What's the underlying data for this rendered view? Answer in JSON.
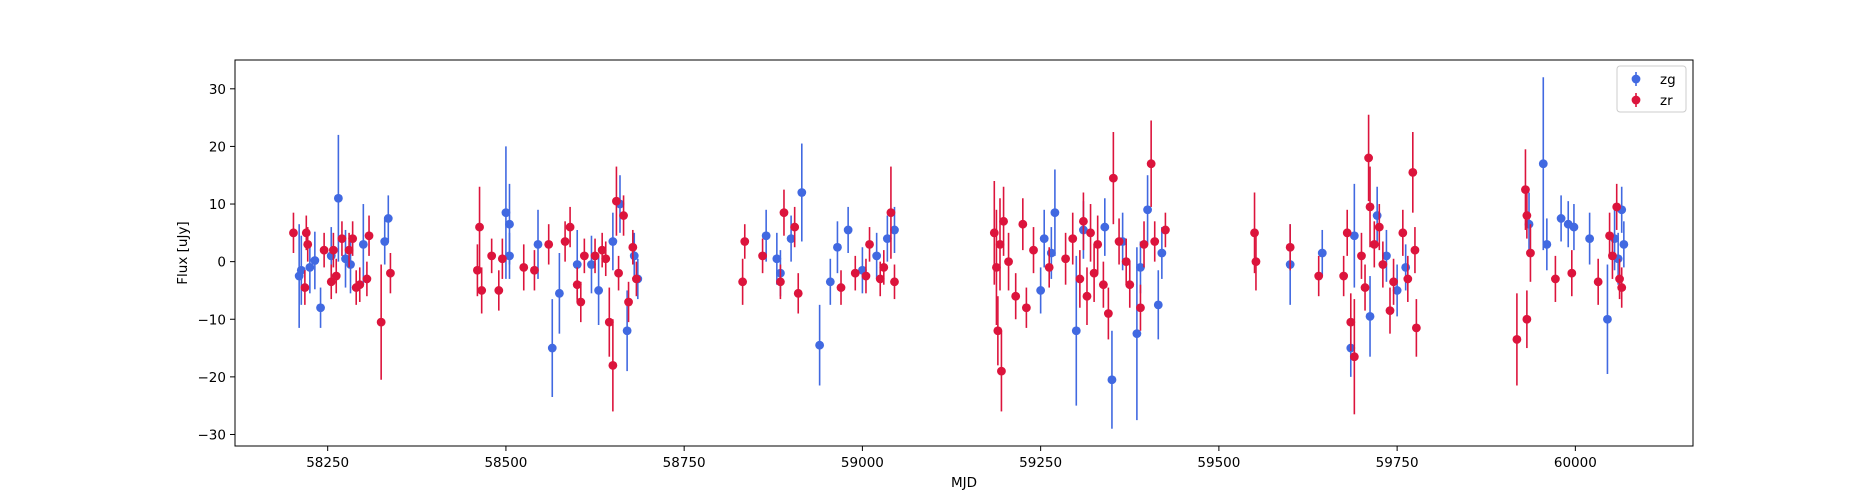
{
  "chart_data": {
    "type": "scatter",
    "xlabel": "MJD",
    "ylabel": "Flux [uJy]",
    "xlim": [
      58120,
      60165
    ],
    "ylim": [
      -32,
      35
    ],
    "xticks": [
      58250,
      58500,
      58750,
      59000,
      59250,
      59500,
      59750,
      60000
    ],
    "yticks": [
      -30,
      -20,
      -10,
      0,
      10,
      20,
      30
    ],
    "grid": false,
    "legend_position": "top-right",
    "series": [
      {
        "name": "zg",
        "color": "#4169e1",
        "points": [
          {
            "x": 58210,
            "y": -2.5,
            "err": 9.0
          },
          {
            "x": 58213,
            "y": -1.5,
            "err": 6.0
          },
          {
            "x": 58225,
            "y": -1.0,
            "err": 4.5
          },
          {
            "x": 58232,
            "y": 0.2,
            "err": 5.0
          },
          {
            "x": 58240,
            "y": -8.0,
            "err": 3.5
          },
          {
            "x": 58255,
            "y": 1.0,
            "err": 5.0
          },
          {
            "x": 58265,
            "y": 11.0,
            "err": 11.0
          },
          {
            "x": 58275,
            "y": 0.5,
            "err": 5.0
          },
          {
            "x": 58282,
            "y": -0.5,
            "err": 5.0
          },
          {
            "x": 58300,
            "y": 3.0,
            "err": 7.0
          },
          {
            "x": 58330,
            "y": 3.5,
            "err": 4.0
          },
          {
            "x": 58335,
            "y": 7.5,
            "err": 4.0
          },
          {
            "x": 58500,
            "y": 8.5,
            "err": 11.5
          },
          {
            "x": 58505,
            "y": 6.5,
            "err": 7.0
          },
          {
            "x": 58505,
            "y": 1.0,
            "err": 4.0
          },
          {
            "x": 58545,
            "y": 3.0,
            "err": 6.0
          },
          {
            "x": 58565,
            "y": -15.0,
            "err": 8.5
          },
          {
            "x": 58575,
            "y": -5.5,
            "err": 7.0
          },
          {
            "x": 58600,
            "y": -0.5,
            "err": 6.0
          },
          {
            "x": 58620,
            "y": -0.5,
            "err": 5.0
          },
          {
            "x": 58630,
            "y": -5.0,
            "err": 6.0
          },
          {
            "x": 58650,
            "y": 3.5,
            "err": 5.0
          },
          {
            "x": 58660,
            "y": 10.0,
            "err": 5.0
          },
          {
            "x": 58670,
            "y": -12.0,
            "err": 7.0
          },
          {
            "x": 58680,
            "y": 1.0,
            "err": 4.0
          },
          {
            "x": 58685,
            "y": -3.0,
            "err": 3.5
          },
          {
            "x": 58865,
            "y": 4.5,
            "err": 4.5
          },
          {
            "x": 58880,
            "y": 0.5,
            "err": 4.5
          },
          {
            "x": 58885,
            "y": -2.0,
            "err": 4.0
          },
          {
            "x": 58900,
            "y": 4.0,
            "err": 4.0
          },
          {
            "x": 58915,
            "y": 12.0,
            "err": 8.5
          },
          {
            "x": 58940,
            "y": -14.5,
            "err": 7.0
          },
          {
            "x": 58955,
            "y": -3.5,
            "err": 4.0
          },
          {
            "x": 58965,
            "y": 2.5,
            "err": 4.5
          },
          {
            "x": 58980,
            "y": 5.5,
            "err": 4.0
          },
          {
            "x": 59000,
            "y": -1.5,
            "err": 4.0
          },
          {
            "x": 59020,
            "y": 1.0,
            "err": 4.0
          },
          {
            "x": 59035,
            "y": 4.0,
            "err": 4.0
          },
          {
            "x": 59045,
            "y": 5.5,
            "err": 4.0
          },
          {
            "x": 59250,
            "y": -5.0,
            "err": 4.0
          },
          {
            "x": 59255,
            "y": 4.0,
            "err": 5.0
          },
          {
            "x": 59265,
            "y": 1.5,
            "err": 4.5
          },
          {
            "x": 59270,
            "y": 8.5,
            "err": 7.5
          },
          {
            "x": 59300,
            "y": -12.0,
            "err": 13.0
          },
          {
            "x": 59310,
            "y": 5.5,
            "err": 5.0
          },
          {
            "x": 59340,
            "y": 6.0,
            "err": 5.0
          },
          {
            "x": 59350,
            "y": -20.5,
            "err": 8.5
          },
          {
            "x": 59365,
            "y": 3.5,
            "err": 5.0
          },
          {
            "x": 59385,
            "y": -12.5,
            "err": 15.0
          },
          {
            "x": 59390,
            "y": -1.0,
            "err": 4.5
          },
          {
            "x": 59400,
            "y": 9.0,
            "err": 6.0
          },
          {
            "x": 59415,
            "y": -7.5,
            "err": 6.0
          },
          {
            "x": 59420,
            "y": 1.5,
            "err": 4.5
          },
          {
            "x": 59600,
            "y": -0.5,
            "err": 7.0
          },
          {
            "x": 59645,
            "y": 1.5,
            "err": 4.0
          },
          {
            "x": 59685,
            "y": -15.0,
            "err": 5.0
          },
          {
            "x": 59690,
            "y": 4.5,
            "err": 9.0
          },
          {
            "x": 59712,
            "y": -9.5,
            "err": 7.0
          },
          {
            "x": 59722,
            "y": 8.0,
            "err": 5.0
          },
          {
            "x": 59735,
            "y": 1.0,
            "err": 4.5
          },
          {
            "x": 59750,
            "y": -5.0,
            "err": 4.5
          },
          {
            "x": 59762,
            "y": -1.0,
            "err": 4.0
          },
          {
            "x": 59935,
            "y": 6.5,
            "err": 5.5
          },
          {
            "x": 59955,
            "y": 17.0,
            "err": 15.0
          },
          {
            "x": 59960,
            "y": 3.0,
            "err": 4.5
          },
          {
            "x": 59980,
            "y": 7.5,
            "err": 4.0
          },
          {
            "x": 59990,
            "y": 6.5,
            "err": 4.0
          },
          {
            "x": 59998,
            "y": 6.0,
            "err": 4.0
          },
          {
            "x": 60020,
            "y": 4.0,
            "err": 4.5
          },
          {
            "x": 60045,
            "y": -10.0,
            "err": 9.5
          },
          {
            "x": 60055,
            "y": 4.0,
            "err": 5.5
          },
          {
            "x": 60060,
            "y": 0.5,
            "err": 4.5
          },
          {
            "x": 60065,
            "y": 9.0,
            "err": 4.0
          },
          {
            "x": 60068,
            "y": 3.0,
            "err": 4.0
          }
        ]
      },
      {
        "name": "zr",
        "color": "#dc143c",
        "points": [
          {
            "x": 58202,
            "y": 5.0,
            "err": 3.5
          },
          {
            "x": 58218,
            "y": -4.5,
            "err": 3.0
          },
          {
            "x": 58220,
            "y": 5.0,
            "err": 3.0
          },
          {
            "x": 58222,
            "y": 3.0,
            "err": 3.0
          },
          {
            "x": 58245,
            "y": 2.0,
            "err": 3.0
          },
          {
            "x": 58255,
            "y": -3.5,
            "err": 3.0
          },
          {
            "x": 58258,
            "y": 2.0,
            "err": 3.0
          },
          {
            "x": 58262,
            "y": -2.5,
            "err": 3.0
          },
          {
            "x": 58270,
            "y": 4.0,
            "err": 3.0
          },
          {
            "x": 58280,
            "y": 2.0,
            "err": 3.0
          },
          {
            "x": 58285,
            "y": 4.0,
            "err": 3.0
          },
          {
            "x": 58290,
            "y": -4.5,
            "err": 3.0
          },
          {
            "x": 58295,
            "y": -4.0,
            "err": 3.0
          },
          {
            "x": 58305,
            "y": -3.0,
            "err": 3.0
          },
          {
            "x": 58308,
            "y": 4.5,
            "err": 3.5
          },
          {
            "x": 58325,
            "y": -10.5,
            "err": 10.0
          },
          {
            "x": 58338,
            "y": -2.0,
            "err": 3.5
          },
          {
            "x": 58460,
            "y": -1.5,
            "err": 4.5
          },
          {
            "x": 58463,
            "y": 6.0,
            "err": 7.0
          },
          {
            "x": 58466,
            "y": -5.0,
            "err": 4.0
          },
          {
            "x": 58480,
            "y": 1.0,
            "err": 3.0
          },
          {
            "x": 58490,
            "y": -5.0,
            "err": 3.5
          },
          {
            "x": 58495,
            "y": 0.5,
            "err": 3.5
          },
          {
            "x": 58525,
            "y": -1.0,
            "err": 4.0
          },
          {
            "x": 58540,
            "y": -1.5,
            "err": 3.5
          },
          {
            "x": 58560,
            "y": 3.0,
            "err": 3.5
          },
          {
            "x": 58583,
            "y": 3.5,
            "err": 3.5
          },
          {
            "x": 58590,
            "y": 6.0,
            "err": 3.5
          },
          {
            "x": 58600,
            "y": -4.0,
            "err": 3.0
          },
          {
            "x": 58605,
            "y": -7.0,
            "err": 3.5
          },
          {
            "x": 58610,
            "y": 1.0,
            "err": 3.0
          },
          {
            "x": 58625,
            "y": 1.0,
            "err": 3.0
          },
          {
            "x": 58635,
            "y": 2.0,
            "err": 3.0
          },
          {
            "x": 58640,
            "y": 0.5,
            "err": 3.0
          },
          {
            "x": 58645,
            "y": -10.5,
            "err": 6.0
          },
          {
            "x": 58650,
            "y": -18.0,
            "err": 8.0
          },
          {
            "x": 58655,
            "y": 10.5,
            "err": 6.0
          },
          {
            "x": 58658,
            "y": -2.0,
            "err": 3.0
          },
          {
            "x": 58665,
            "y": 8.0,
            "err": 3.5
          },
          {
            "x": 58672,
            "y": -7.0,
            "err": 3.5
          },
          {
            "x": 58678,
            "y": 2.5,
            "err": 3.0
          },
          {
            "x": 58683,
            "y": -3.0,
            "err": 3.0
          },
          {
            "x": 58832,
            "y": -3.5,
            "err": 4.0
          },
          {
            "x": 58835,
            "y": 3.5,
            "err": 3.0
          },
          {
            "x": 58860,
            "y": 1.0,
            "err": 3.0
          },
          {
            "x": 58885,
            "y": -3.5,
            "err": 3.0
          },
          {
            "x": 58890,
            "y": 8.5,
            "err": 4.0
          },
          {
            "x": 58905,
            "y": 6.0,
            "err": 3.5
          },
          {
            "x": 58910,
            "y": -5.5,
            "err": 3.5
          },
          {
            "x": 58970,
            "y": -4.5,
            "err": 3.0
          },
          {
            "x": 58990,
            "y": -2.0,
            "err": 3.0
          },
          {
            "x": 59005,
            "y": -2.5,
            "err": 3.0
          },
          {
            "x": 59010,
            "y": 3.0,
            "err": 3.0
          },
          {
            "x": 59025,
            "y": -3.0,
            "err": 3.0
          },
          {
            "x": 59030,
            "y": -1.0,
            "err": 3.0
          },
          {
            "x": 59040,
            "y": 8.5,
            "err": 8.0
          },
          {
            "x": 59045,
            "y": -3.5,
            "err": 3.0
          },
          {
            "x": 59185,
            "y": 5.0,
            "err": 9.0
          },
          {
            "x": 59188,
            "y": -1.0,
            "err": 10.0
          },
          {
            "x": 59190,
            "y": -12.0,
            "err": 6.0
          },
          {
            "x": 59193,
            "y": 3.0,
            "err": 8.0
          },
          {
            "x": 59195,
            "y": -19.0,
            "err": 7.0
          },
          {
            "x": 59198,
            "y": 7.0,
            "err": 6.0
          },
          {
            "x": 59205,
            "y": 0.0,
            "err": 5.0
          },
          {
            "x": 59215,
            "y": -6.0,
            "err": 4.0
          },
          {
            "x": 59225,
            "y": 6.5,
            "err": 4.5
          },
          {
            "x": 59230,
            "y": -8.0,
            "err": 3.5
          },
          {
            "x": 59240,
            "y": 2.0,
            "err": 4.0
          },
          {
            "x": 59262,
            "y": -1.0,
            "err": 3.5
          },
          {
            "x": 59285,
            "y": 0.5,
            "err": 4.5
          },
          {
            "x": 59295,
            "y": 4.0,
            "err": 4.5
          },
          {
            "x": 59305,
            "y": -3.0,
            "err": 5.0
          },
          {
            "x": 59310,
            "y": 7.0,
            "err": 5.0
          },
          {
            "x": 59315,
            "y": -6.0,
            "err": 5.0
          },
          {
            "x": 59320,
            "y": 5.0,
            "err": 5.0
          },
          {
            "x": 59325,
            "y": -2.0,
            "err": 5.0
          },
          {
            "x": 59330,
            "y": 3.0,
            "err": 5.0
          },
          {
            "x": 59338,
            "y": -4.0,
            "err": 4.0
          },
          {
            "x": 59345,
            "y": -9.0,
            "err": 4.5
          },
          {
            "x": 59352,
            "y": 14.5,
            "err": 8.0
          },
          {
            "x": 59360,
            "y": 3.5,
            "err": 4.0
          },
          {
            "x": 59370,
            "y": 0.0,
            "err": 4.0
          },
          {
            "x": 59375,
            "y": -4.0,
            "err": 4.0
          },
          {
            "x": 59390,
            "y": -8.0,
            "err": 4.0
          },
          {
            "x": 59395,
            "y": 3.0,
            "err": 4.0
          },
          {
            "x": 59405,
            "y": 17.0,
            "err": 7.5
          },
          {
            "x": 59410,
            "y": 3.5,
            "err": 3.5
          },
          {
            "x": 59425,
            "y": 5.5,
            "err": 3.0
          },
          {
            "x": 59550,
            "y": 5.0,
            "err": 7.0
          },
          {
            "x": 59552,
            "y": 0.0,
            "err": 5.0
          },
          {
            "x": 59600,
            "y": 2.5,
            "err": 4.0
          },
          {
            "x": 59640,
            "y": -2.5,
            "err": 3.5
          },
          {
            "x": 59675,
            "y": -2.5,
            "err": 3.5
          },
          {
            "x": 59680,
            "y": 5.0,
            "err": 4.0
          },
          {
            "x": 59685,
            "y": -10.5,
            "err": 5.0
          },
          {
            "x": 59690,
            "y": -16.5,
            "err": 10.0
          },
          {
            "x": 59700,
            "y": 1.0,
            "err": 4.0
          },
          {
            "x": 59705,
            "y": -4.5,
            "err": 4.0
          },
          {
            "x": 59710,
            "y": 18.0,
            "err": 7.5
          },
          {
            "x": 59712,
            "y": 9.5,
            "err": 7.0
          },
          {
            "x": 59718,
            "y": 3.0,
            "err": 4.0
          },
          {
            "x": 59725,
            "y": 6.0,
            "err": 4.0
          },
          {
            "x": 59730,
            "y": -0.5,
            "err": 4.0
          },
          {
            "x": 59740,
            "y": -8.5,
            "err": 4.0
          },
          {
            "x": 59745,
            "y": -3.5,
            "err": 4.0
          },
          {
            "x": 59758,
            "y": 5.0,
            "err": 4.0
          },
          {
            "x": 59765,
            "y": -3.0,
            "err": 4.0
          },
          {
            "x": 59772,
            "y": 15.5,
            "err": 7.0
          },
          {
            "x": 59775,
            "y": 2.0,
            "err": 4.0
          },
          {
            "x": 59777,
            "y": -11.5,
            "err": 5.0
          },
          {
            "x": 59918,
            "y": -13.5,
            "err": 8.0
          },
          {
            "x": 59930,
            "y": 12.5,
            "err": 7.0
          },
          {
            "x": 59932,
            "y": 8.0,
            "err": 4.0
          },
          {
            "x": 59932,
            "y": -10.0,
            "err": 5.0
          },
          {
            "x": 59937,
            "y": 1.5,
            "err": 5.0
          },
          {
            "x": 59972,
            "y": -3.0,
            "err": 4.0
          },
          {
            "x": 59995,
            "y": -2.0,
            "err": 4.0
          },
          {
            "x": 60032,
            "y": -3.5,
            "err": 4.0
          },
          {
            "x": 60048,
            "y": 4.5,
            "err": 4.0
          },
          {
            "x": 60052,
            "y": 1.0,
            "err": 4.0
          },
          {
            "x": 60058,
            "y": 9.5,
            "err": 4.0
          },
          {
            "x": 60062,
            "y": -3.0,
            "err": 3.5
          },
          {
            "x": 60065,
            "y": -4.5,
            "err": 3.5
          }
        ]
      }
    ]
  }
}
